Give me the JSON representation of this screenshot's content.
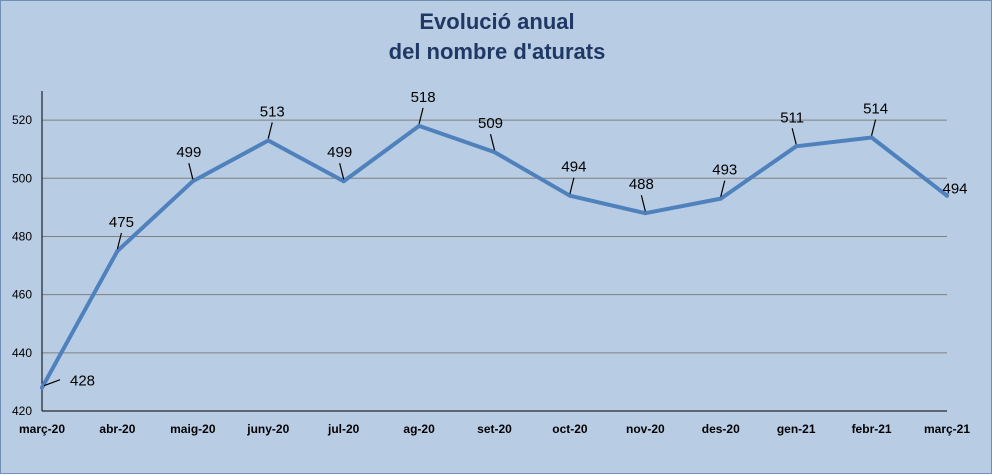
{
  "chart_data": {
    "type": "line",
    "title_lines": [
      "Evolució anual",
      "del nombre d'aturats"
    ],
    "categories": [
      "març-20",
      "abr-20",
      "maig-20",
      "juny-20",
      "jul-20",
      "ag-20",
      "set-20",
      "oct-20",
      "nov-20",
      "des-20",
      "gen-21",
      "febr-21",
      "març-21"
    ],
    "values": [
      428,
      475,
      499,
      513,
      499,
      518,
      509,
      494,
      488,
      493,
      511,
      514,
      494
    ],
    "data_labels": [
      "428",
      "475",
      "499",
      "513",
      "499",
      "518",
      "509",
      "494",
      "488",
      "493",
      "511",
      "514",
      "494"
    ],
    "yticks": [
      "420",
      "440",
      "460",
      "480",
      "500",
      "520"
    ],
    "ylim": [
      420,
      530
    ],
    "grid": true,
    "legend": "none",
    "colors": {
      "line": "#4f81bd",
      "background": "#b8cce4",
      "grid": "#808080",
      "title": "#1f3864"
    }
  }
}
